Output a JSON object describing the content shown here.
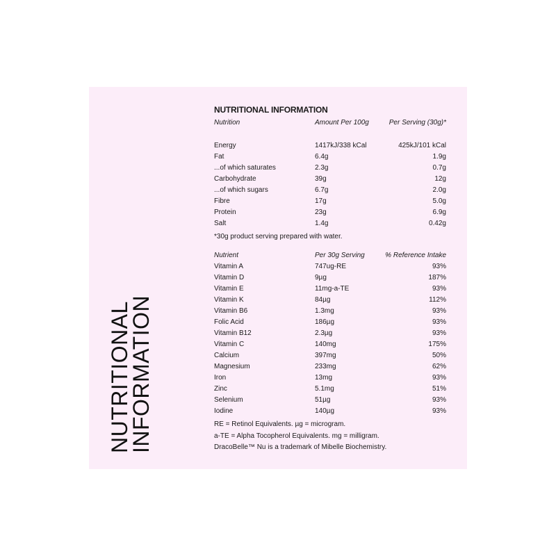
{
  "side_title": {
    "line1": "NUTRITIONAL",
    "line2": "INFORMATION"
  },
  "title": "NUTRITIONAL INFORMATION",
  "table1": {
    "headers": [
      "Nutrition",
      "Amount Per 100g",
      "Per Serving (30g)*"
    ],
    "rows": [
      [
        "Energy",
        "1417kJ/338 kCal",
        "425kJ/101 kCal"
      ],
      [
        "Fat",
        "6.4g",
        "1.9g"
      ],
      [
        "...of which saturates",
        "2.3g",
        "0.7g"
      ],
      [
        "Carbohydrate",
        "39g",
        "12g"
      ],
      [
        "...of which sugars",
        "6.7g",
        "2.0g"
      ],
      [
        "Fibre",
        "17g",
        "5.0g"
      ],
      [
        "Protein",
        "23g",
        "6.9g"
      ],
      [
        "Salt",
        "1.4g",
        "0.42g"
      ]
    ],
    "footnote": "*30g product serving prepared with water."
  },
  "table2": {
    "headers": [
      "Nutrient",
      "Per 30g Serving",
      "% Reference Intake"
    ],
    "rows": [
      [
        "Vitamin A",
        "747ug-RE",
        "93%"
      ],
      [
        "Vitamin D",
        "9µg",
        "187%"
      ],
      [
        "Vitamin E",
        "11mg-a-TE",
        "93%"
      ],
      [
        "Vitamin K",
        "84µg",
        "112%"
      ],
      [
        "Vitamin B6",
        "1.3mg",
        "93%"
      ],
      [
        "Folic Acid",
        "186µg",
        "93%"
      ],
      [
        "Vitamin B12",
        "2.3µg",
        "93%"
      ],
      [
        "Vitamin C",
        "140mg",
        "175%"
      ],
      [
        "Calcium",
        "397mg",
        "50%"
      ],
      [
        "Magnesium",
        "233mg",
        "62%"
      ],
      [
        "Iron",
        "13mg",
        "93%"
      ],
      [
        "Zinc",
        "5.1mg",
        "51%"
      ],
      [
        "Selenium",
        "51µg",
        "93%"
      ],
      [
        "Iodine",
        "140µg",
        "93%"
      ]
    ]
  },
  "notes": [
    "RE = Retinol Equivalents. µg = microgram.",
    "a-TE = Alpha Tocopherol Equivalents. mg = milligram.",
    "DracoBelle™ Nu is a trademark of Mibelle Biochemistry."
  ],
  "colors": {
    "panel": "#fcedf9",
    "text": "#1a1a1a"
  }
}
